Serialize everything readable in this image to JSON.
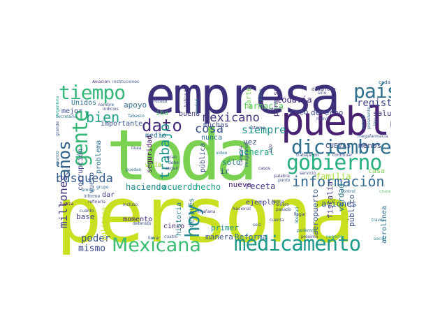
{
  "words": [
    {
      "text": "persona",
      "color": "#c8e020"
    },
    {
      "text": "toda",
      "color": "#7ad151"
    },
    {
      "text": "empresa",
      "color": "#3e2f7a"
    },
    {
      "text": "pueblo",
      "color": "#482173"
    },
    {
      "text": "diciembre",
      "color": "#2e6e8e"
    },
    {
      "text": "gobierno",
      "color": "#2ab07f"
    },
    {
      "text": "medicamento",
      "color": "#1f9a8a"
    },
    {
      "text": "Mexicana",
      "color": "#3dbc74"
    },
    {
      "text": "tiempo",
      "color": "#35b779"
    },
    {
      "text": "país",
      "color": "#2d718e"
    },
    {
      "text": "información",
      "color": "#31688e"
    },
    {
      "text": "dato",
      "color": "#472d7b"
    },
    {
      "text": "gente",
      "color": "#35b779"
    },
    {
      "text": "años",
      "color": "#33638d"
    },
    {
      "text": "hoy",
      "color": "#23898e"
    },
    {
      "text": "mexicano",
      "color": "#46337f"
    },
    {
      "text": "bien",
      "color": "#1fa187"
    },
    {
      "text": "cosa",
      "color": "#3b528b"
    },
    {
      "text": "búsqueda",
      "color": "#365c8d"
    },
    {
      "text": "trabajo",
      "color": "#1f948c"
    },
    {
      "text": "millones",
      "color": "#433e85"
    },
    {
      "text": "poder",
      "color": "#3b528b"
    },
    {
      "text": "mismo",
      "color": "#3e4a89"
    },
    {
      "text": "siempre",
      "color": "#20928c"
    },
    {
      "text": "registro",
      "color": "#3f4889"
    },
    {
      "text": "salud",
      "color": "#424086"
    },
    {
      "text": "creo",
      "color": "#404588"
    },
    {
      "text": "derecho",
      "color": "#3f4788"
    },
    {
      "text": "todavía",
      "color": "#472c7a"
    },
    {
      "text": "farmacia",
      "color": "#5ec962"
    },
    {
      "text": "general",
      "color": "#22a785"
    },
    {
      "text": "familia",
      "color": "#a5db36"
    },
    {
      "text": "receta",
      "color": "#443983"
    },
    {
      "text": "nuevo",
      "color": "#482475"
    },
    {
      "text": "haciendo",
      "color": "#25858e"
    },
    {
      "text": "acuerdo",
      "color": "#1e9b8a"
    },
    {
      "text": "hecho",
      "color": "#20a386"
    },
    {
      "text": "aviones",
      "color": "#38598c"
    },
    {
      "text": "ejemplo",
      "color": "#414487"
    },
    {
      "text": "manera",
      "color": "#3b528b"
    },
    {
      "text": "Reforma",
      "color": "#2d708e"
    },
    {
      "text": "primer",
      "color": "#1f968b"
    },
    {
      "text": "momento",
      "color": "#482878"
    },
    {
      "text": "base",
      "color": "#414487"
    },
    {
      "text": "después",
      "color": "#2a788e"
    },
    {
      "text": "importante",
      "color": "#3a548c"
    },
    {
      "text": "mejor",
      "color": "#3e4c8a"
    },
    {
      "text": "apoyo",
      "color": "#2f6c8e"
    },
    {
      "text": "Unidos",
      "color": "#2c728e"
    },
    {
      "text": "buena",
      "color": "#453781"
    },
    {
      "text": "muchas",
      "color": "#3f4788"
    },
    {
      "text": "nunca",
      "color": "#2e6f8e"
    },
    {
      "text": "medio",
      "color": "#2f6b8e"
    },
    {
      "text": "cinco",
      "color": "#481f70"
    },
    {
      "text": "vez",
      "color": "#3a548c"
    },
    {
      "text": "sólo",
      "color": "#25848e"
    },
    {
      "text": "ir",
      "color": "#3c4f8a"
    },
    {
      "text": "menos",
      "color": "#414287"
    },
    {
      "text": "CUEVAS",
      "color": "#3d4d8a"
    },
    {
      "text": "casa",
      "color": "#7ad151"
    },
    {
      "text": "dar",
      "color": "#404688"
    },
    {
      "text": "iba",
      "color": "#56c667"
    },
    {
      "text": "vida",
      "color": "#a0da39"
    },
    {
      "text": "público",
      "color": "#3b528b"
    },
    {
      "text": "verdad",
      "color": "#2a768e"
    },
    {
      "text": "fiscalía",
      "color": "#443a83"
    },
    {
      "text": "aeropuerto",
      "color": "#3a548c"
    },
    {
      "text": "aerolínea",
      "color": "#2e6d8e"
    },
    {
      "text": "historia",
      "color": "#27808e"
    },
    {
      "text": "seguridad",
      "color": "#471063"
    },
    {
      "text": "pública",
      "color": "#3d4e8a"
    },
    {
      "text": "corrupción",
      "color": "#414487"
    },
    {
      "text": "vuelo",
      "color": "#3b528b"
    },
    {
      "text": "problema",
      "color": "#2e6e8e"
    },
    {
      "text": "política",
      "color": "#bddf26"
    },
    {
      "text": "parte",
      "color": "#75d054"
    },
    {
      "text": "permiso",
      "color": "#472f7d"
    },
    {
      "text": "sistema",
      "color": "#3e4a89"
    },
    {
      "text": "nadie",
      "color": "#443983"
    },
    {
      "text": "desarrollo",
      "color": "#3f4788"
    },
    {
      "text": "cada",
      "color": "#33638d"
    },
    {
      "text": "Aviación",
      "color": "#482475"
    },
    {
      "text": "instituciones",
      "color": "#3b528b"
    },
    {
      "text": "Tabasco",
      "color": "#2c728e"
    },
    {
      "text": "fuerza",
      "color": "#460b5e"
    },
    {
      "text": "cuánto",
      "color": "#3e4a89"
    },
    {
      "text": "informe",
      "color": "#3b528b"
    },
    {
      "text": "mundo",
      "color": "#31688e"
    },
    {
      "text": "grande",
      "color": "#3e4c8a"
    },
    {
      "text": "secretario",
      "color": "#2a788e"
    },
    {
      "text": "Argentina",
      "color": "#1f9e89"
    },
    {
      "text": "llevar",
      "color": "#3b528b"
    },
    {
      "text": "detenido",
      "color": "#3e4a89"
    },
    {
      "text": "incluso",
      "color": "#433e85"
    },
    {
      "text": "pueden",
      "color": "#2e6e8e"
    },
    {
      "text": "seguir",
      "color": "#3b528b"
    },
    {
      "text": "gran",
      "color": "#3f4788"
    },
    {
      "text": "video",
      "color": "#2a788e"
    },
    {
      "text": "casos",
      "color": "#453781"
    },
    {
      "text": "trabajando",
      "color": "#3b528b"
    },
    {
      "text": "servicio",
      "color": "#3f4788"
    },
    {
      "text": "continuar",
      "color": "#404688"
    },
    {
      "text": "control",
      "color": "#31688e"
    },
    {
      "text": "cuenta",
      "color": "#3e4a89"
    },
    {
      "text": "próximo",
      "color": "#453781"
    },
    {
      "text": "negocio",
      "color": "#1f968b"
    },
    {
      "text": "social",
      "color": "#25848e"
    },
    {
      "text": "través",
      "color": "#2c728e"
    },
    {
      "text": "seis",
      "color": "#3b528b"
    },
    {
      "text": "podemos",
      "color": "#2a788e"
    },
    {
      "text": "llegar",
      "color": "#3f4788"
    },
    {
      "text": "dinero",
      "color": "#3e4a89"
    },
    {
      "text": "pasado",
      "color": "#3f4788"
    },
    {
      "text": "Nacional",
      "color": "#414487"
    },
    {
      "text": "mañana",
      "color": "#443983"
    },
    {
      "text": "cuatro",
      "color": "#3b528b"
    },
    {
      "text": "Ciudad",
      "color": "#2a788e"
    },
    {
      "text": "hablando",
      "color": "#453781"
    },
    {
      "text": "proceso",
      "color": "#3e4a89"
    },
    {
      "text": "nombre",
      "color": "#3b528b"
    },
    {
      "text": "indicios",
      "color": "#414487"
    },
    {
      "text": "nueva",
      "color": "#3f4788"
    },
    {
      "text": "último",
      "color": "#2c728e"
    },
    {
      "text": "megafarmacia",
      "color": "#3b528b"
    },
    {
      "text": "cruce",
      "color": "#5ec962"
    },
    {
      "text": "libertad",
      "color": "#2a788e"
    },
    {
      "text": "forma",
      "color": "#3f4788"
    },
    {
      "text": "palabra",
      "color": "#443983"
    },
    {
      "text": "punto",
      "color": "#3b528b"
    },
    {
      "text": "línea",
      "color": "#3e4a89"
    },
    {
      "text": "debe",
      "color": "#3b528b"
    },
    {
      "text": "grupo",
      "color": "#31688e"
    },
    {
      "text": "refinería",
      "color": "#443983"
    },
    {
      "text": "amigo",
      "color": "#2a788e"
    },
    {
      "text": "Campaña",
      "color": "#414487"
    },
    {
      "text": "Imaginense",
      "color": "#3f4788"
    },
    {
      "text": "tipo",
      "color": "#3b528b"
    },
    {
      "text": "algo",
      "color": "#443983"
    },
    {
      "text": "estado",
      "color": "#2c728e"
    },
    {
      "text": "sino",
      "color": "#3e4a89"
    },
    {
      "text": "presidente",
      "color": "#31688e"
    }
  ]
}
